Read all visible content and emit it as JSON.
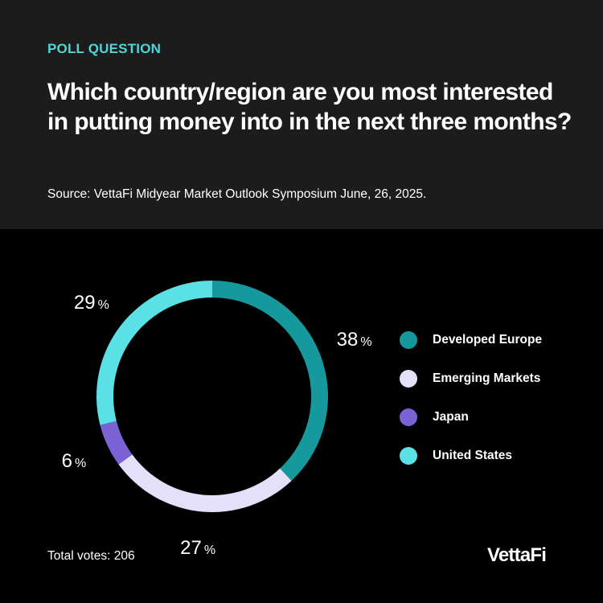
{
  "header": {
    "eyebrow": "POLL QUESTION",
    "question": "Which country/region are you most interested in putting money into in the next three months?",
    "source": "Source: VettaFi Midyear Market Outlook Symposium June, 26, 2025."
  },
  "chart_data": {
    "type": "pie",
    "donut": true,
    "categories": [
      "Developed Europe",
      "Emerging Markets",
      "Japan",
      "United States"
    ],
    "values": [
      38,
      27,
      6,
      29
    ],
    "unit": "%",
    "colors": [
      "#15999c",
      "#e4e0fa",
      "#7b63d6",
      "#5ae1e6"
    ],
    "legend_position": "right"
  },
  "footer": {
    "total_votes": "Total votes: 206",
    "logo": "VettaFi"
  }
}
